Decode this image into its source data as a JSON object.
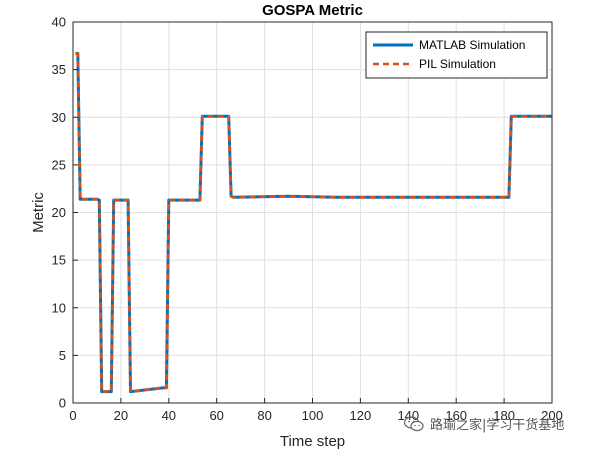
{
  "chart_data": {
    "type": "line",
    "title": "GOSPA Metric",
    "xlabel": "Time step",
    "ylabel": "Metric",
    "xlim": [
      0,
      200
    ],
    "ylim": [
      0,
      40
    ],
    "xticks": [
      0,
      20,
      40,
      60,
      80,
      100,
      120,
      140,
      160,
      180,
      200
    ],
    "yticks": [
      0,
      5,
      10,
      15,
      20,
      25,
      30,
      35,
      40
    ],
    "grid": true,
    "legend_position": "top-right",
    "series": [
      {
        "name": "MATLAB Simulation",
        "color": "#0072BD",
        "style": "solid",
        "x": [
          1,
          2,
          3,
          10,
          11,
          12,
          16,
          17,
          23,
          24,
          38,
          39,
          40,
          53,
          54,
          65,
          66,
          67,
          90,
          110,
          140,
          160,
          180,
          182,
          183,
          200
        ],
        "y": [
          36.7,
          36.7,
          21.4,
          21.4,
          21.3,
          1.2,
          1.2,
          21.3,
          21.3,
          1.2,
          1.6,
          1.6,
          21.3,
          21.3,
          30.1,
          30.1,
          21.7,
          21.6,
          21.7,
          21.6,
          21.6,
          21.6,
          21.6,
          21.6,
          30.1,
          30.1
        ]
      },
      {
        "name": "PIL Simulation",
        "color": "#D95319",
        "style": "dashed",
        "x": [
          1,
          2,
          3,
          10,
          11,
          12,
          16,
          17,
          23,
          24,
          38,
          39,
          40,
          53,
          54,
          65,
          66,
          67,
          90,
          110,
          140,
          160,
          180,
          182,
          183,
          200
        ],
        "y": [
          36.7,
          36.7,
          21.4,
          21.4,
          21.3,
          1.2,
          1.2,
          21.3,
          21.3,
          1.2,
          1.6,
          1.6,
          21.3,
          21.3,
          30.1,
          30.1,
          21.7,
          21.6,
          21.7,
          21.6,
          21.6,
          21.6,
          21.6,
          21.6,
          30.1,
          30.1
        ]
      }
    ]
  },
  "watermark": {
    "text": "路瑜之家|学习干货基地",
    "icon": "wechat-icon"
  }
}
